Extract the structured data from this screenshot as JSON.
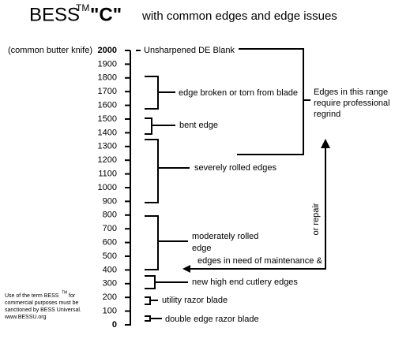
{
  "title": {
    "name": "BESS",
    "tm": "TM",
    "grade": "\"C\"",
    "subtitle": "with common edges and edge issues"
  },
  "scale": {
    "note": "(common butter knife)",
    "ticks": [
      0,
      100,
      200,
      300,
      400,
      500,
      600,
      700,
      800,
      900,
      1000,
      1100,
      1200,
      1300,
      1400,
      1500,
      1600,
      1700,
      1800,
      1900,
      2000
    ]
  },
  "labels": {
    "blank": "Unsharpened DE Blank",
    "broken": "edge broken or torn from blade",
    "bent": "bent edge",
    "severe": "severely rolled edges",
    "moderate": [
      "moderately rolled",
      "edge"
    ],
    "cutlery": "new high end cutlery edges",
    "utility": "utility razor blade",
    "double": "double edge razor blade"
  },
  "professional": [
    "Edges in this range",
    "require professional",
    "regrind"
  ],
  "maintenance": {
    "text": "edges in need of maintenance &",
    "rotated": "or repair"
  },
  "footnote": {
    "pre": "Use of the term BESS",
    "tm": "TM",
    "post": "for",
    "lines": [
      "commercial purposes must be",
      "sanctioned by BESS Universal.",
      "www.BESSU.org"
    ]
  }
}
